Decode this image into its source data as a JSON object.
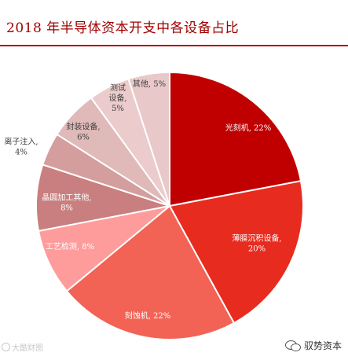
{
  "title": "2018 年半导体资本开支中各设备占比",
  "source": "大酷财图",
  "watermark": "驭势资本",
  "chart_data": {
    "type": "pie",
    "title": "2018 年半导体资本开支中各设备占比",
    "start_angle_deg": 0,
    "direction": "clockwise",
    "slices": [
      {
        "label": "光刻机",
        "value": 22,
        "display": "22%",
        "color": "#c00000",
        "text_color": "#ffffff"
      },
      {
        "label": "薄膜沉积设备",
        "value": 20,
        "display": "20%",
        "color": "#e82b1f",
        "text_color": "#ffffff"
      },
      {
        "label": "刻蚀机",
        "value": 22,
        "display": "22%",
        "color": "#f26355",
        "text_color": "#ffffff"
      },
      {
        "label": "工艺检测",
        "value": 8,
        "display": "8%",
        "color": "#fe9c9c",
        "text_color": "#ffffff"
      },
      {
        "label": "晶圆加工其他",
        "value": 8,
        "display": "8%",
        "color": "#c97f7f",
        "text_color": "#ffffff"
      },
      {
        "label": "离子注入",
        "value": 4,
        "display": "4%",
        "color": "#d49e9e",
        "text_color": "#404040"
      },
      {
        "label": "封装设备",
        "value": 6,
        "display": "6%",
        "color": "#e0b9b9",
        "text_color": "#404040"
      },
      {
        "label": "测试设备",
        "value": 5,
        "display": "5%",
        "color": "#ebcbcb",
        "text_color": "#404040"
      },
      {
        "label": "其他",
        "value": 5,
        "display": "5%",
        "color": "#e8c8c8",
        "text_color": "#404040"
      }
    ]
  }
}
